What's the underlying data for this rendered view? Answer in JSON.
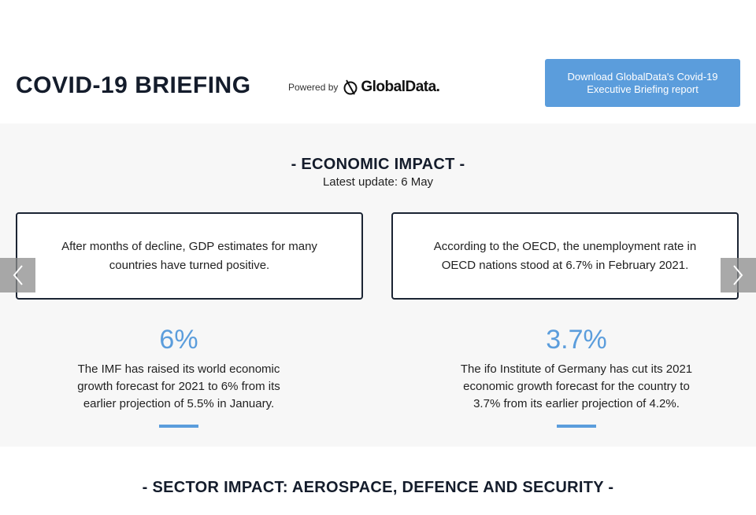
{
  "header": {
    "title": "COVID-19 BRIEFING",
    "powered_by": "Powered by",
    "logo": "GlobalData.",
    "button": "Download GlobalData's Covid-19 Executive Briefing report"
  },
  "economic_impact": {
    "heading": "- ECONOMIC IMPACT -",
    "update": "Latest update: 6 May",
    "cards": [
      "After months of decline, GDP estimates for many countries have turned positive.",
      "According to the OECD, the unemployment rate in OECD nations stood at 6.7% in February 2021."
    ],
    "stats": [
      {
        "value": "6%",
        "text": "The IMF has raised its world economic growth forecast for 2021 to 6% from its earlier projection of 5.5% in January."
      },
      {
        "value": "3.7%",
        "text": "The ifo Institute of Germany has cut its 2021 economic growth forecast for the country to 3.7% from its earlier projection of 4.2%."
      }
    ]
  },
  "sector_impact": {
    "heading": "- SECTOR IMPACT: AEROSPACE, DEFENCE AND SECURITY -"
  }
}
